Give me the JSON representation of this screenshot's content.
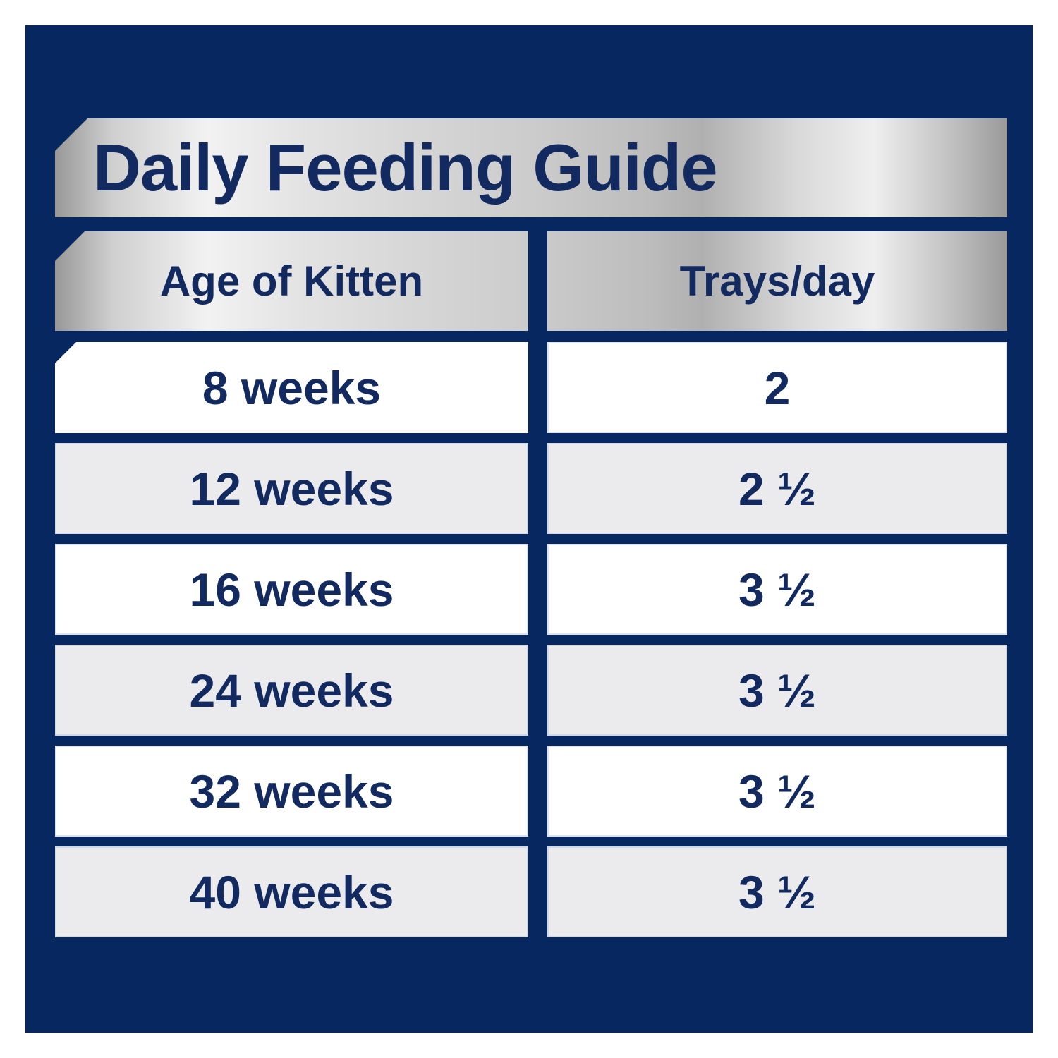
{
  "panel": {
    "title": "Daily Feeding Guide",
    "colors": {
      "navy_background": "#06275f",
      "text_navy": "#122a5f",
      "row_white": "#ffffff",
      "row_gray": "#ebebee",
      "metallic_silver_light": "#f2f2f2",
      "metallic_silver_dark": "#989898"
    }
  },
  "table": {
    "columns": [
      "Age of Kitten",
      "Trays/day"
    ],
    "rows": [
      {
        "age": "8 weeks",
        "trays": "2"
      },
      {
        "age": "12 weeks",
        "trays": "2 ½"
      },
      {
        "age": "16 weeks",
        "trays": "3 ½"
      },
      {
        "age": "24 weeks",
        "trays": "3 ½"
      },
      {
        "age": "32 weeks",
        "trays": "3 ½"
      },
      {
        "age": "40 weeks",
        "trays": "3 ½"
      }
    ]
  },
  "chart_data": {
    "type": "table",
    "title": "Daily Feeding Guide",
    "categories": [
      "8 weeks",
      "12 weeks",
      "16 weeks",
      "24 weeks",
      "32 weeks",
      "40 weeks"
    ],
    "series": [
      {
        "name": "Trays/day",
        "values": [
          2,
          2.5,
          3.5,
          3.5,
          3.5,
          3.5
        ]
      }
    ],
    "columns": [
      "Age of Kitten",
      "Trays/day"
    ],
    "layout": "two-column table, alternating white/gray rows on navy background, metallic silver headers"
  }
}
